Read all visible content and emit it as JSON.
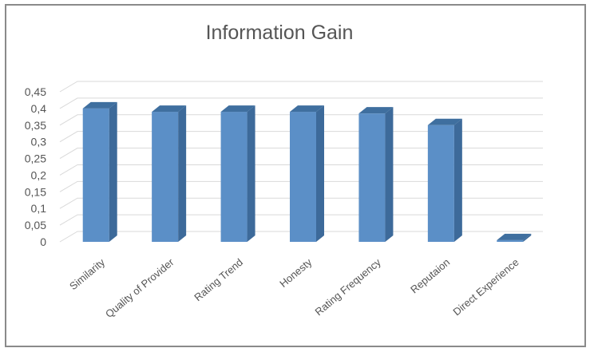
{
  "chart_data": {
    "type": "bar",
    "title": "Information Gain",
    "categories": [
      "Similarity",
      "Quality of Provider",
      "Rating Trend",
      "Honesty",
      "Rating Frequency",
      "Reputaion",
      "Direct Experience"
    ],
    "values": [
      0.4,
      0.39,
      0.39,
      0.39,
      0.385,
      0.35,
      0.005
    ],
    "yticks": [
      "0",
      "0,05",
      "0,1",
      "0,15",
      "0,2",
      "0,25",
      "0,3",
      "0,35",
      "0,4",
      "0,45"
    ],
    "ylim": [
      0,
      0.45
    ],
    "grid": true,
    "legend": "none",
    "colors": {
      "bar_front": "#5b8fc7",
      "bar_side": "#3d6a9a",
      "bar_top": "#3f6f9f",
      "grid": "#d9d9d9",
      "text": "#555555"
    }
  }
}
